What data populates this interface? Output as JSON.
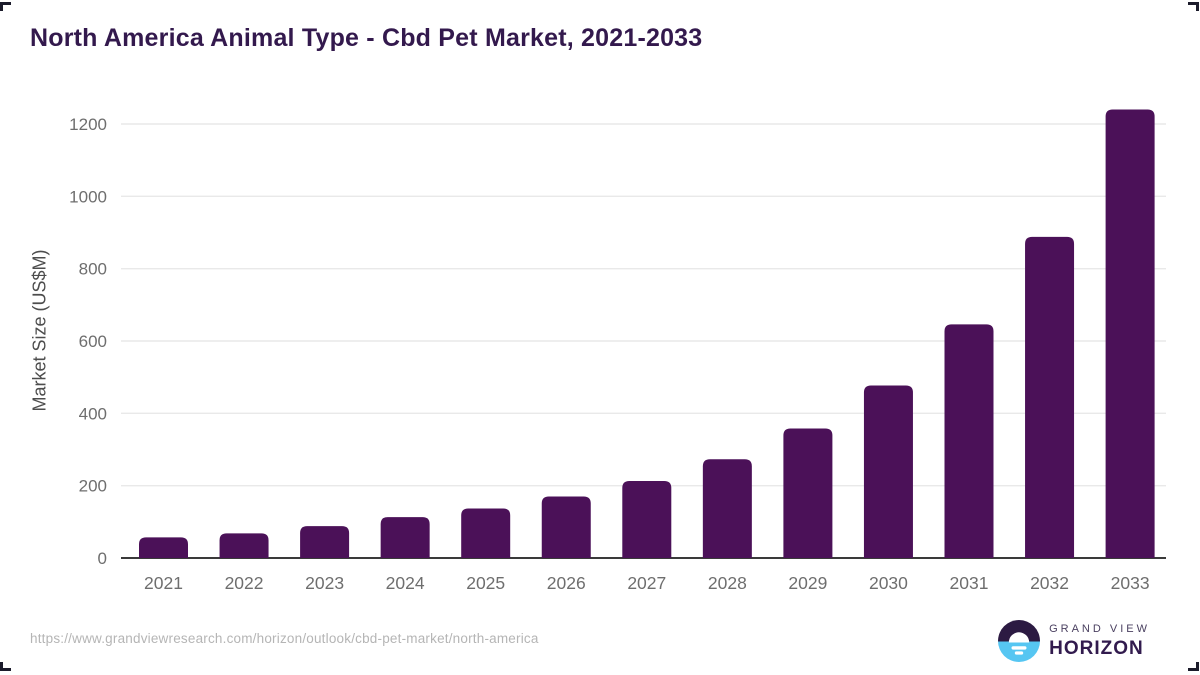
{
  "chart_data": {
    "type": "bar",
    "title": "North America Animal Type - Cbd Pet Market, 2021-2033",
    "categories": [
      "2021",
      "2022",
      "2023",
      "2024",
      "2025",
      "2026",
      "2027",
      "2028",
      "2029",
      "2030",
      "2031",
      "2032",
      "2033"
    ],
    "values": [
      57,
      68,
      88,
      113,
      137,
      170,
      213,
      273,
      358,
      477,
      646,
      888,
      1240
    ],
    "xlabel": "",
    "ylabel": "Market Size (US$M)",
    "yticks": [
      0,
      200,
      400,
      600,
      800,
      1000,
      1200
    ],
    "ylim": [
      0,
      1280
    ],
    "grid": true,
    "legend": "none",
    "bar_color": "#4b1158"
  },
  "colors": {
    "title_text": "#33194d",
    "axis_label_gray": "#6e6e6e",
    "y_axis_title_gray": "#4d4d4d",
    "gridline": "#e9e9e9",
    "axis_line": "#3a3a3a",
    "url_gray": "#b5b5b5",
    "logo_dark_purple": "#2c1a42",
    "logo_light_blue": "#56c6f2",
    "corner_mark": "#1b1b2b"
  },
  "footer": {
    "source_url": "https://www.grandviewresearch.com/horizon/outlook/cbd-pet-market/north-america",
    "logo": {
      "line1": "GRAND VIEW",
      "line2": "HORIZON"
    }
  }
}
